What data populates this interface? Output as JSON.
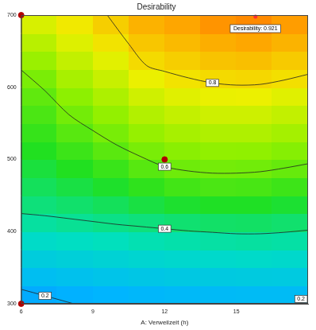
{
  "chart_data": {
    "type": "contour",
    "title": "Desirability",
    "x_label": "A: Verweilzeit (h)",
    "xlim": [
      6,
      18
    ],
    "xticks": [
      6,
      9,
      12,
      15
    ],
    "ylim": [
      300,
      700
    ],
    "yticks": [
      300,
      400,
      500,
      600,
      700
    ],
    "grid": false,
    "zlim": [
      0,
      1
    ],
    "x_edges": [
      6,
      7.5,
      9,
      10.5,
      12,
      13.5,
      15,
      16.5,
      18
    ],
    "y_edges": [
      300,
      325,
      350,
      375,
      400,
      425,
      450,
      475,
      500,
      525,
      550,
      575,
      600,
      625,
      650,
      675,
      700
    ],
    "z": [
      [
        0.185,
        0.195,
        0.203,
        0.211,
        0.217,
        0.222,
        0.224,
        0.223
      ],
      [
        0.234,
        0.244,
        0.253,
        0.262,
        0.268,
        0.273,
        0.276,
        0.274
      ],
      [
        0.283,
        0.293,
        0.303,
        0.312,
        0.319,
        0.325,
        0.328,
        0.324
      ],
      [
        0.332,
        0.342,
        0.353,
        0.363,
        0.37,
        0.376,
        0.38,
        0.375
      ],
      [
        0.38,
        0.391,
        0.403,
        0.414,
        0.425,
        0.433,
        0.436,
        0.428
      ],
      [
        0.416,
        0.43,
        0.446,
        0.467,
        0.486,
        0.495,
        0.495,
        0.483
      ],
      [
        0.445,
        0.466,
        0.49,
        0.52,
        0.546,
        0.557,
        0.554,
        0.539
      ],
      [
        0.473,
        0.502,
        0.534,
        0.573,
        0.604,
        0.612,
        0.609,
        0.594
      ],
      [
        0.501,
        0.538,
        0.578,
        0.619,
        0.642,
        0.652,
        0.65,
        0.637
      ],
      [
        0.529,
        0.575,
        0.618,
        0.658,
        0.681,
        0.692,
        0.692,
        0.678
      ],
      [
        0.558,
        0.611,
        0.654,
        0.696,
        0.719,
        0.732,
        0.733,
        0.718
      ],
      [
        0.586,
        0.646,
        0.689,
        0.735,
        0.758,
        0.772,
        0.774,
        0.759
      ],
      [
        0.621,
        0.682,
        0.725,
        0.773,
        0.796,
        0.808,
        0.811,
        0.801
      ],
      [
        0.663,
        0.718,
        0.761,
        0.808,
        0.823,
        0.836,
        0.841,
        0.828
      ],
      [
        0.704,
        0.754,
        0.796,
        0.833,
        0.848,
        0.863,
        0.871,
        0.856
      ],
      [
        0.746,
        0.789,
        0.823,
        0.858,
        0.873,
        0.891,
        0.901,
        0.883
      ]
    ],
    "contours": [
      {
        "level": 0.8,
        "x": [
          9.6,
          10.5,
          11.25,
          12,
          13,
          14,
          15,
          16,
          17,
          18
        ],
        "y": [
          700,
          660,
          630,
          622,
          613,
          606,
          603,
          604,
          610,
          618
        ]
      },
      {
        "level": 0.6,
        "x": [
          6,
          7,
          8,
          9,
          10,
          11,
          12,
          13,
          14,
          15,
          16,
          17,
          18
        ],
        "y": [
          624,
          595,
          562,
          540,
          520,
          504,
          490,
          484,
          481,
          481,
          483,
          488,
          494
        ]
      },
      {
        "level": 0.4,
        "x": [
          6,
          7,
          8,
          9,
          10,
          11,
          12,
          13,
          14,
          15,
          16,
          17,
          18
        ],
        "y": [
          425,
          422,
          418,
          414,
          410,
          407,
          404,
          401,
          399,
          397,
          397,
          399,
          402
        ]
      },
      {
        "level": 0.2,
        "x": [
          6,
          7,
          8.2
        ],
        "y": [
          320,
          311,
          300
        ]
      },
      {
        "level": 0.2,
        "x": [
          17.3,
          18
        ],
        "y": [
          300,
          303
        ]
      }
    ],
    "points": {
      "x": [
        6,
        12,
        6
      ],
      "y": [
        700,
        500,
        300
      ],
      "color": "#b00000"
    },
    "annotations": [
      {
        "text": "Desirability: 0.921",
        "x": 15.8,
        "y": 700
      }
    ]
  }
}
